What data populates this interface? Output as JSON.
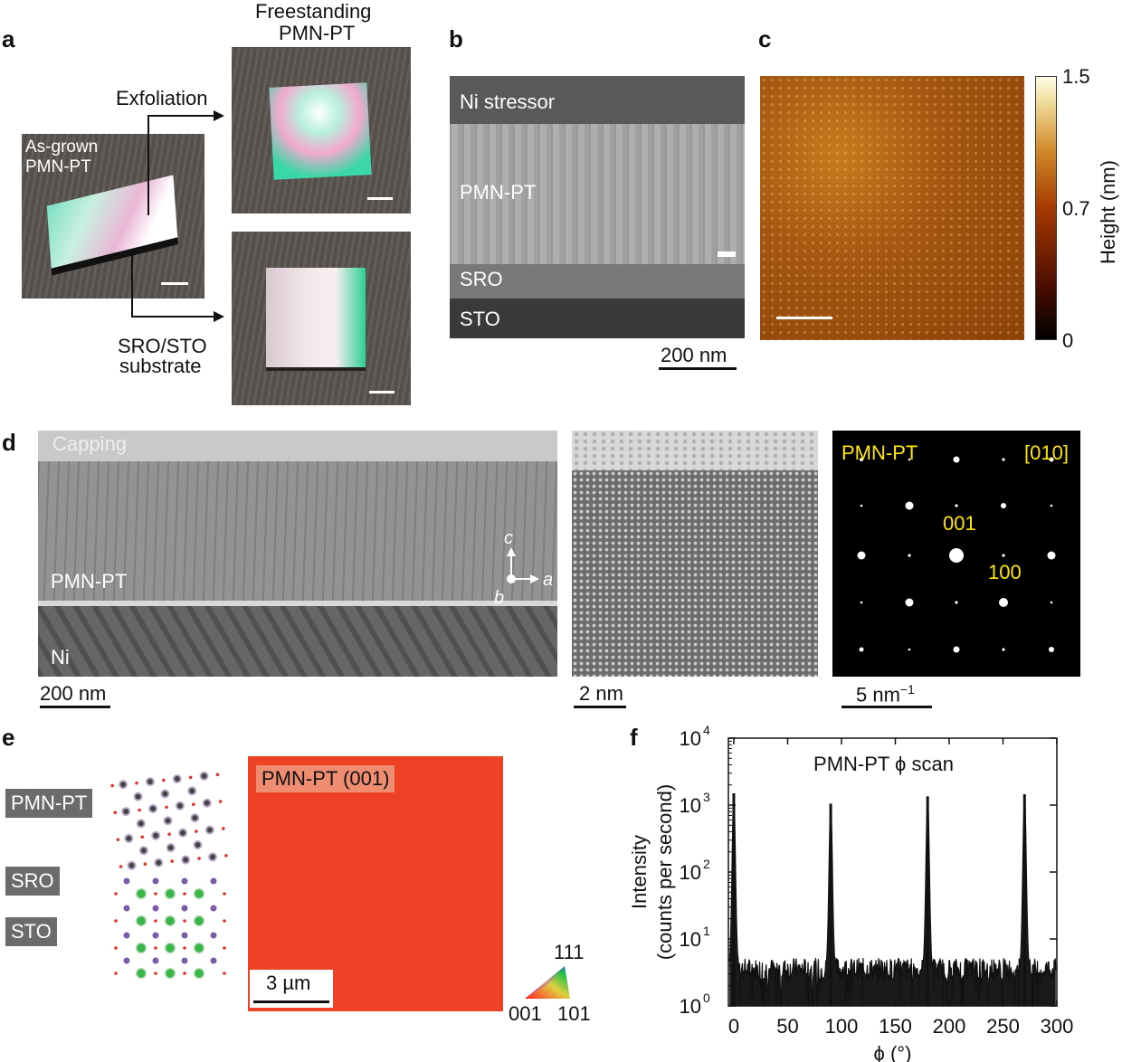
{
  "panel_labels": {
    "a": "a",
    "b": "b",
    "c": "c",
    "d": "d",
    "e": "e",
    "f": "f"
  },
  "panel_a": {
    "freestanding": "Freestanding",
    "pmn_pt": "PMN-PT",
    "exfoliation": "Exfoliation",
    "as_grown": "As-grown",
    "as_grown_pmn": "PMN-PT",
    "substrate_line1": "SRO/STO",
    "substrate_line2": "substrate"
  },
  "panel_b": {
    "ni_stressor": "Ni stressor",
    "pmn_pt": "PMN-PT",
    "sro": "SRO",
    "sto": "STO",
    "scale": "200 nm"
  },
  "panel_c": {
    "colorbar_max": "1.5",
    "colorbar_mid": "0.7",
    "colorbar_min": "0",
    "colorbar_label": "Height (nm)"
  },
  "panel_d": {
    "capping": "Capping",
    "pmn_pt": "PMN-PT",
    "ni": "Ni",
    "axis_c": "c",
    "axis_a": "a",
    "axis_b": "b",
    "scale_left": "200 nm",
    "scale_mid": "2 nm",
    "scale_right": "5 nm",
    "scale_right_exp": "−1",
    "sad_title": "PMN-PT",
    "zone_axis": "[010]",
    "spot_001": "001",
    "spot_100": "100"
  },
  "panel_e": {
    "pmn_pt": "PMN-PT",
    "sro": "SRO",
    "sto": "STO",
    "map_label": "PMN-PT (001)",
    "scale": "3 µm",
    "ipf_111": "111",
    "ipf_001": "001",
    "ipf_101": "101",
    "map_color": "#ee4227"
  },
  "chart_data": {
    "type": "line",
    "title": "PMN-PT ϕ scan",
    "xlabel": "ϕ (°)",
    "ylabel_line1": "Intensity",
    "ylabel_line2": "(counts per second)",
    "xlim": [
      -5,
      300
    ],
    "ylim_log10": [
      0,
      4
    ],
    "x_ticks": [
      "0",
      "50",
      "100",
      "150",
      "200",
      "250",
      "300"
    ],
    "y_ticks": [
      {
        "base": "10",
        "exp": "0"
      },
      {
        "base": "10",
        "exp": "1"
      },
      {
        "base": "10",
        "exp": "2"
      },
      {
        "base": "10",
        "exp": "3"
      },
      {
        "base": "10",
        "exp": "4"
      }
    ],
    "peaks": [
      {
        "phi": 0,
        "intensity": 1500
      },
      {
        "phi": 90,
        "intensity": 1050
      },
      {
        "phi": 180,
        "intensity": 1350
      },
      {
        "phi": 270,
        "intensity": 1450
      }
    ],
    "background_counts": 3.5
  }
}
